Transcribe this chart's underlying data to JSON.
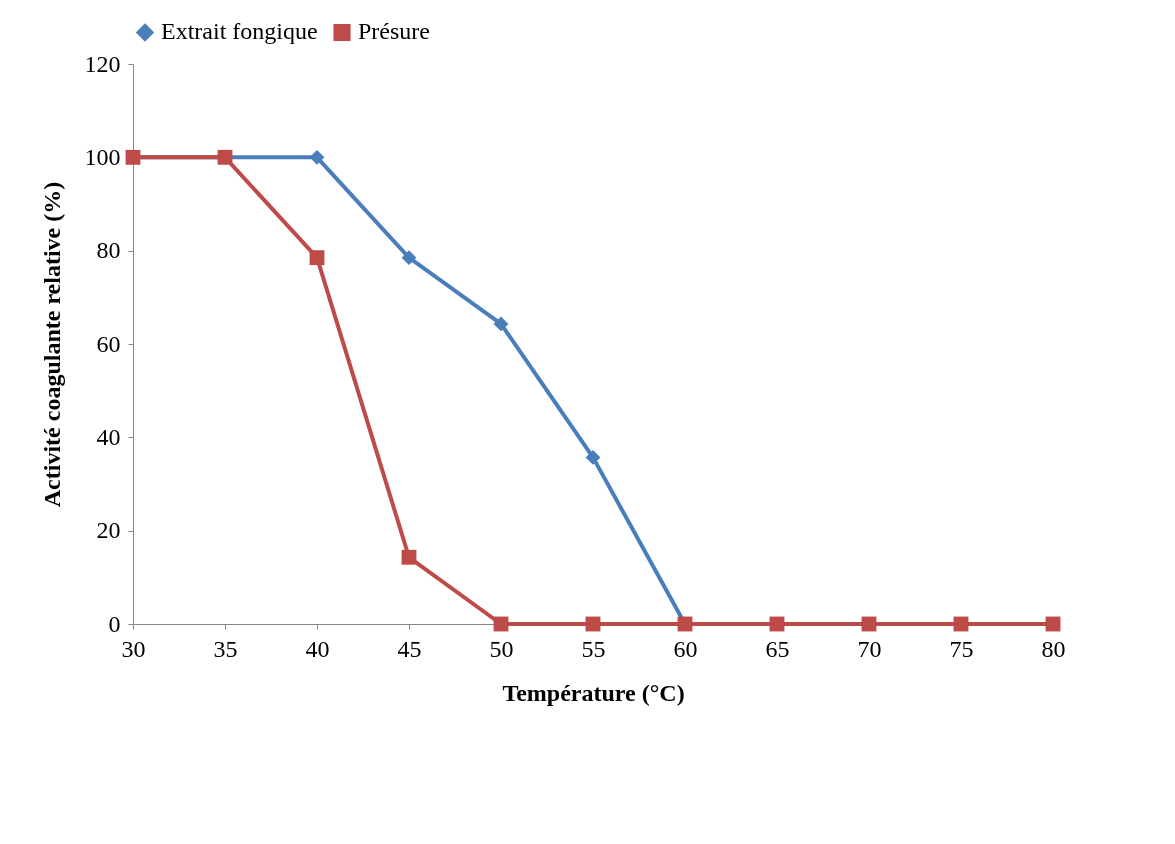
{
  "chart_data": {
    "type": "line",
    "xlabel": "Température (°C)",
    "ylabel": "Activité coagulante relative (%)",
    "x": [
      30,
      35,
      40,
      45,
      50,
      55,
      60,
      65,
      70,
      75,
      80
    ],
    "series": [
      {
        "name": "Extrait fongique",
        "color": "#4a7ebb",
        "marker": "diamond",
        "values": [
          100,
          100,
          100,
          78.5,
          64.3,
          35.7,
          0,
          null,
          null,
          null,
          null
        ]
      },
      {
        "name": "Présure",
        "color": "#be4b48",
        "marker": "square",
        "values": [
          100,
          100,
          78.5,
          14.3,
          0,
          0,
          0,
          0,
          0,
          0,
          0
        ]
      }
    ],
    "xlim": [
      30,
      80
    ],
    "xticks": [
      30,
      35,
      40,
      45,
      50,
      55,
      60,
      65,
      70,
      75,
      80
    ],
    "ylim": [
      0,
      120
    ],
    "yticks": [
      0,
      20,
      40,
      60,
      80,
      100,
      120
    ],
    "grid": false,
    "legend": "top",
    "line_style": "solid"
  }
}
